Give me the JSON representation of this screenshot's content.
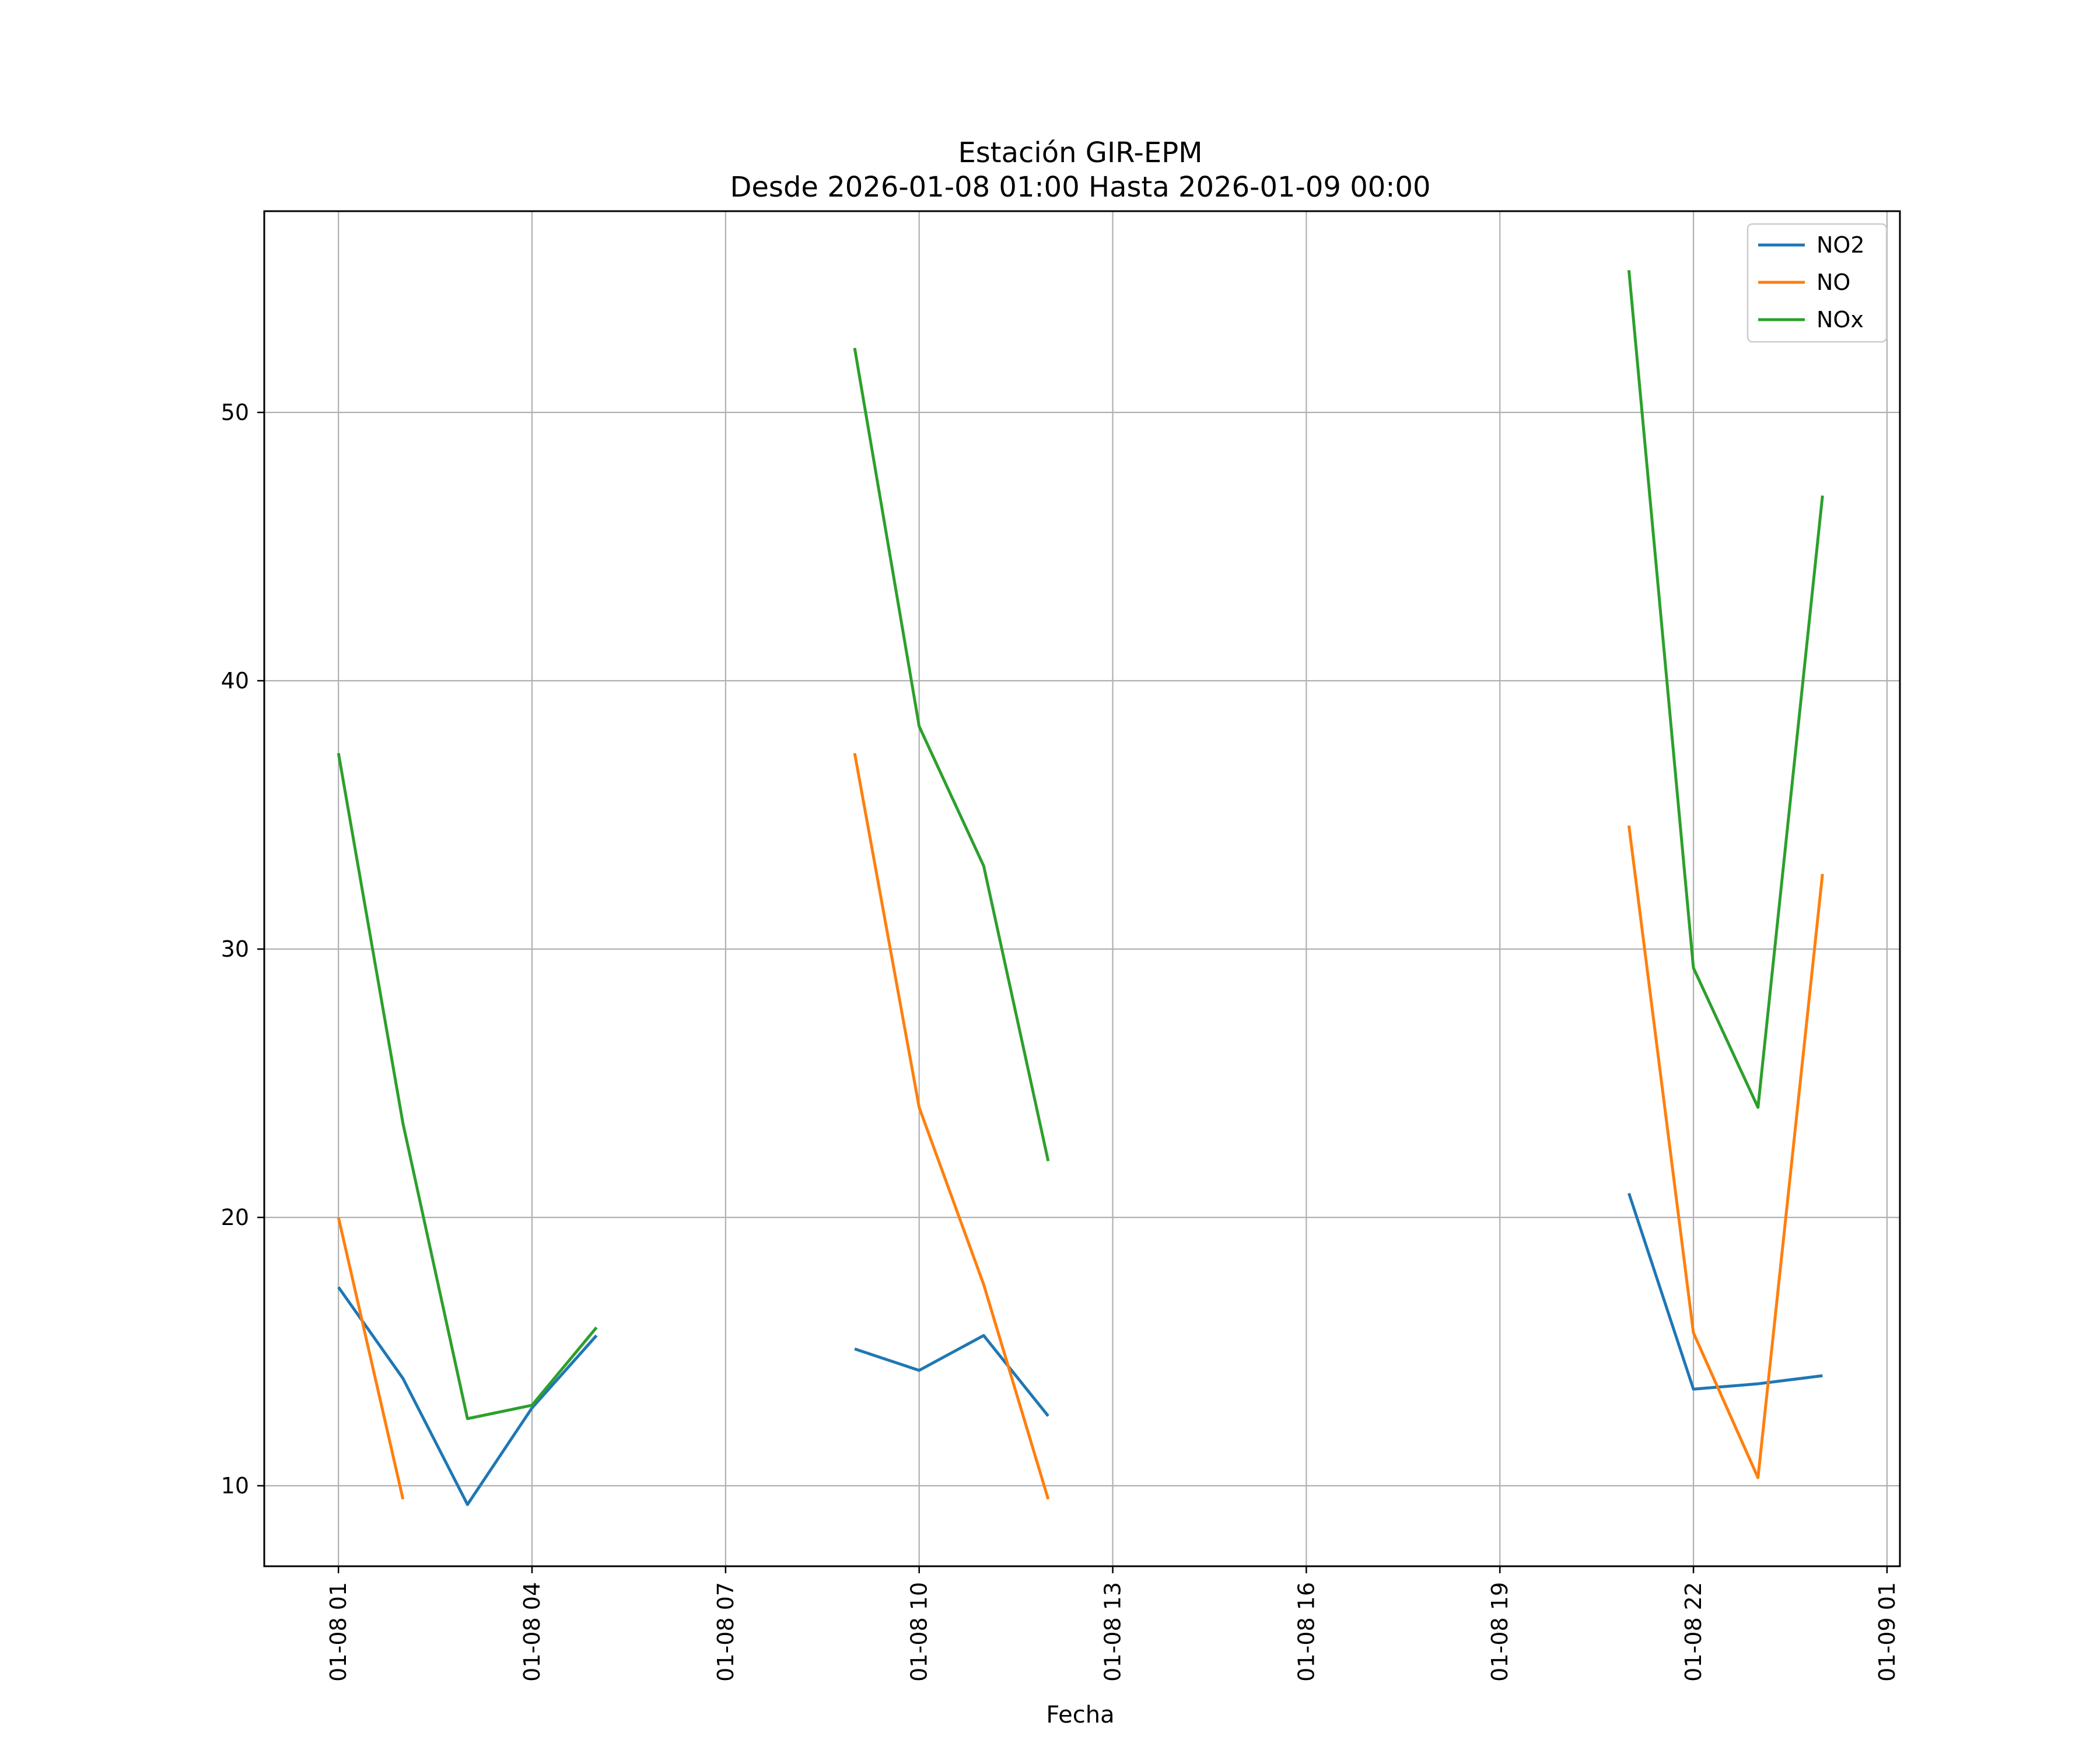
{
  "chart_data": {
    "type": "line",
    "title": "Estación GIR-EPM",
    "subtitle": "Desde 2026-01-08 01:00 Hasta 2026-01-09 00:00",
    "xlabel": "Fecha",
    "ylabel": "",
    "x_tick_labels": [
      "01-08 01",
      "01-08 04",
      "01-08 07",
      "01-08 10",
      "01-08 13",
      "01-08 16",
      "01-08 19",
      "01-08 22",
      "01-09 01"
    ],
    "x_tick_hours": [
      1,
      4,
      7,
      10,
      13,
      16,
      19,
      22,
      25
    ],
    "y_tick_labels": [
      "10",
      "20",
      "30",
      "40",
      "50"
    ],
    "y_tick_values": [
      10,
      20,
      30,
      40,
      50
    ],
    "xlim": [
      -0.15,
      25.2
    ],
    "ylim": [
      7,
      57.5
    ],
    "grid": true,
    "legend_position": "top-right",
    "hours": [
      1,
      2,
      3,
      4,
      5,
      6,
      7,
      8,
      9,
      10,
      11,
      12,
      13,
      14,
      15,
      16,
      17,
      18,
      19,
      20,
      21,
      22,
      23,
      24
    ],
    "series": [
      {
        "name": "NO2",
        "color": "#1f77b4",
        "values": [
          17.4,
          14.0,
          9.3,
          12.9,
          15.6,
          null,
          null,
          null,
          15.1,
          14.3,
          15.6,
          12.6,
          null,
          null,
          null,
          null,
          null,
          null,
          null,
          null,
          20.9,
          13.6,
          13.8,
          14.1
        ]
      },
      {
        "name": "NO",
        "color": "#ff7f0e",
        "values": [
          20.0,
          9.5,
          null,
          null,
          null,
          null,
          null,
          null,
          37.3,
          24.1,
          17.5,
          9.5,
          null,
          null,
          null,
          null,
          null,
          null,
          null,
          null,
          34.6,
          15.7,
          10.3,
          32.8
        ]
      },
      {
        "name": "NOx",
        "color": "#2ca02c",
        "values": [
          37.3,
          23.5,
          12.5,
          13.0,
          15.9,
          null,
          null,
          null,
          52.4,
          38.3,
          33.1,
          22.1,
          null,
          null,
          null,
          null,
          null,
          null,
          null,
          null,
          55.3,
          29.3,
          24.1,
          46.9
        ]
      }
    ]
  }
}
